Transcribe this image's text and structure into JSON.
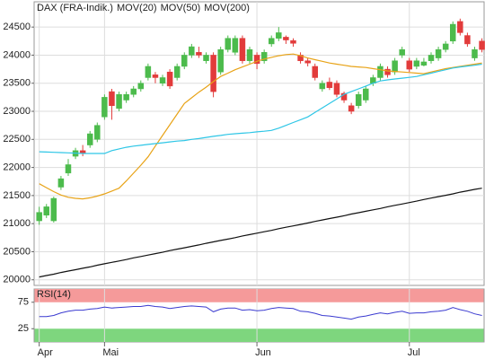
{
  "chart_data": [
    {
      "type": "candlestick",
      "categories": [
        "Apr",
        null,
        null,
        null,
        null,
        null,
        null,
        null,
        null,
        "Mai",
        null,
        null,
        null,
        null,
        null,
        null,
        null,
        null,
        null,
        null,
        null,
        null,
        null,
        null,
        null,
        null,
        null,
        null,
        null,
        null,
        "Jun",
        null,
        null,
        null,
        null,
        null,
        null,
        null,
        null,
        null,
        null,
        null,
        null,
        null,
        null,
        null,
        null,
        null,
        null,
        null,
        null,
        "Jul",
        null,
        null,
        null,
        null,
        null,
        null,
        null,
        null,
        null,
        null
      ],
      "ylim": [
        19900,
        24950
      ],
      "yticks": [
        20000,
        20500,
        21000,
        21500,
        22000,
        22500,
        23000,
        23500,
        24000,
        24500
      ],
      "grid": true,
      "series": [
        {
          "name": "DAX (FRA-Indik.)",
          "color": "#e23b3b",
          "up_color": "#4cbb4c",
          "open": [
            21050,
            21150,
            21050,
            21650,
            21900,
            22200,
            22300,
            22400,
            22500,
            22900,
            23350,
            23050,
            23200,
            23300,
            23400,
            23600,
            23650,
            23500,
            23700,
            23600,
            23800,
            24000,
            24050,
            23900,
            24000,
            23700,
            24100,
            24050,
            24300,
            23900,
            24000,
            23900,
            24200,
            24300,
            24320,
            24260,
            24000,
            23900,
            23800,
            23400,
            23520,
            23500,
            23320,
            23100,
            23100,
            23200,
            23500,
            23600,
            23750,
            23700,
            24000,
            23900,
            23800,
            23820,
            23900,
            23950,
            24100,
            24250,
            24600,
            24350,
            23950,
            24250
          ],
          "high": [
            21300,
            21350,
            21480,
            21850,
            22150,
            22350,
            22400,
            22650,
            22800,
            23300,
            23400,
            23350,
            23350,
            23450,
            23550,
            23850,
            23700,
            23650,
            23750,
            23850,
            24050,
            24200,
            24150,
            24050,
            24050,
            24150,
            24350,
            24350,
            24350,
            24150,
            24050,
            24100,
            24350,
            24500,
            24350,
            24300,
            24050,
            23950,
            23850,
            23550,
            23600,
            23550,
            23350,
            23150,
            23350,
            23450,
            23650,
            23850,
            23800,
            23950,
            24150,
            23950,
            23950,
            23950,
            24050,
            24150,
            24250,
            24600,
            24650,
            24400,
            24150,
            24300
          ],
          "low": [
            20980,
            21100,
            21020,
            21600,
            21850,
            22150,
            22200,
            22350,
            22450,
            22850,
            22850,
            23000,
            23150,
            23250,
            23350,
            23550,
            23500,
            23450,
            23400,
            23550,
            23750,
            23950,
            23950,
            23850,
            23250,
            23650,
            24050,
            24000,
            23850,
            23850,
            23750,
            23850,
            24150,
            24250,
            24200,
            24150,
            23850,
            23800,
            23550,
            23350,
            23380,
            23250,
            23150,
            22950,
            23050,
            23150,
            23450,
            23550,
            23600,
            23650,
            23950,
            23700,
            23750,
            23800,
            23850,
            23900,
            24050,
            24200,
            24350,
            24150,
            23900,
            24050
          ],
          "close": [
            21200,
            21300,
            21450,
            21800,
            22050,
            22300,
            22250,
            22600,
            22750,
            23250,
            23100,
            23300,
            23300,
            23400,
            23500,
            23800,
            23600,
            23600,
            23450,
            23800,
            24000,
            24150,
            24000,
            24000,
            23350,
            24100,
            24300,
            24300,
            23900,
            24100,
            23850,
            24050,
            24300,
            24400,
            24270,
            24210,
            23900,
            23860,
            23600,
            23500,
            23420,
            23300,
            23200,
            23000,
            23300,
            23400,
            23600,
            23800,
            23650,
            23900,
            24100,
            23750,
            23900,
            23880,
            24000,
            24100,
            24200,
            24550,
            24400,
            24200,
            24100,
            24100
          ]
        },
        {
          "name": "MOV(20)",
          "color": "#e8a317",
          "values": [
            21710,
            21640,
            21570,
            21510,
            21470,
            21450,
            21440,
            21460,
            21490,
            21530,
            21580,
            21630,
            21760,
            21900,
            22040,
            22190,
            22380,
            22570,
            22760,
            22950,
            23140,
            23240,
            23340,
            23430,
            23530,
            23620,
            23680,
            23740,
            23790,
            23840,
            23890,
            23930,
            23960,
            23990,
            24010,
            24020,
            23990,
            23950,
            23920,
            23890,
            23860,
            23840,
            23820,
            23800,
            23790,
            23780,
            23760,
            23740,
            23720,
            23710,
            23700,
            23690,
            23680,
            23670,
            23700,
            23730,
            23760,
            23780,
            23800,
            23820,
            23840,
            23860
          ]
        },
        {
          "name": "MOV(50)",
          "color": "#2ec6e6",
          "values": [
            22280,
            22275,
            22270,
            22265,
            22260,
            22255,
            22250,
            22250,
            22250,
            22250,
            22300,
            22330,
            22360,
            22380,
            22395,
            22410,
            22425,
            22440,
            22455,
            22470,
            22480,
            22500,
            22515,
            22535,
            22555,
            22570,
            22590,
            22600,
            22610,
            22620,
            22635,
            22645,
            22660,
            22700,
            22750,
            22800,
            22850,
            22900,
            22980,
            23060,
            23140,
            23220,
            23300,
            23350,
            23400,
            23450,
            23500,
            23540,
            23560,
            23575,
            23590,
            23605,
            23620,
            23650,
            23680,
            23710,
            23740,
            23770,
            23790,
            23805,
            23820,
            23840
          ]
        },
        {
          "name": "MOV(200)",
          "color": "#111111",
          "values": [
            20050,
            20075,
            20100,
            20130,
            20155,
            20180,
            20205,
            20230,
            20260,
            20285,
            20310,
            20335,
            20360,
            20390,
            20415,
            20440,
            20465,
            20490,
            20520,
            20545,
            20570,
            20595,
            20620,
            20650,
            20675,
            20700,
            20725,
            20750,
            20780,
            20805,
            20830,
            20855,
            20880,
            20910,
            20935,
            20960,
            20985,
            21010,
            21040,
            21065,
            21090,
            21115,
            21140,
            21170,
            21195,
            21220,
            21245,
            21270,
            21300,
            21325,
            21350,
            21375,
            21400,
            21430,
            21455,
            21480,
            21505,
            21530,
            21560,
            21585,
            21610,
            21630
          ]
        }
      ]
    },
    {
      "type": "line",
      "title": "RSI(14)",
      "ylim": [
        0,
        100
      ],
      "yticks": [
        25,
        75
      ],
      "bands": [
        {
          "from": 75,
          "to": 100,
          "color": "#f59a9a"
        },
        {
          "from": 0,
          "to": 25,
          "color": "#7ed67e"
        }
      ],
      "series": [
        {
          "color": "#3a3ad0",
          "values": [
            48,
            48,
            50,
            55,
            58,
            60,
            60,
            62,
            63,
            66,
            64,
            65,
            66,
            67,
            67,
            69,
            67,
            66,
            63,
            65,
            67,
            68,
            67,
            66,
            57,
            62,
            64,
            64,
            60,
            61,
            59,
            60,
            63,
            65,
            64,
            63,
            58,
            57,
            54,
            50,
            49,
            47,
            45,
            43,
            47,
            49,
            52,
            55,
            53,
            56,
            58,
            54,
            55,
            55,
            57,
            58,
            60,
            65,
            61,
            58,
            53,
            50
          ]
        }
      ]
    }
  ]
}
